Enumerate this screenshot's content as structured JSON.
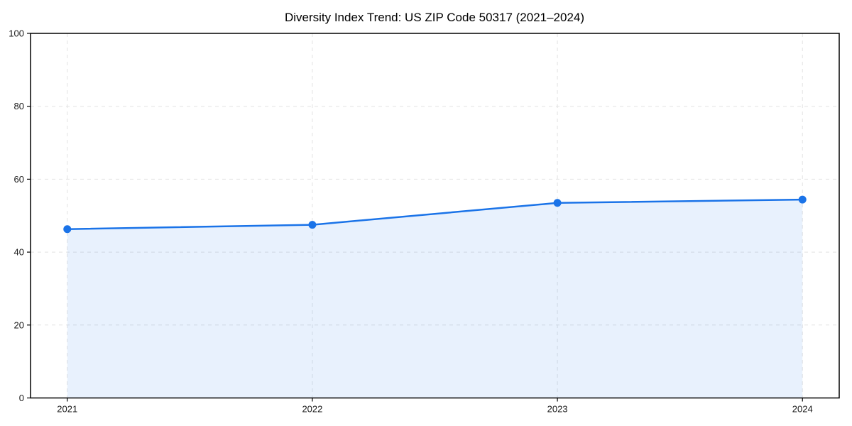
{
  "chart_data": {
    "type": "area",
    "title": "Diversity Index Trend: US ZIP Code 50317 (2021–2024)",
    "xlabel": "",
    "ylabel": "",
    "x": [
      2021,
      2022,
      2023,
      2024
    ],
    "categories": [
      "2021",
      "2022",
      "2023",
      "2024"
    ],
    "series": [
      {
        "name": "Diversity Index",
        "values": [
          46.3,
          47.5,
          53.5,
          54.4
        ]
      }
    ],
    "xlim": [
      2020.85,
      2024.15
    ],
    "ylim": [
      0,
      100
    ],
    "yticks": [
      0,
      20,
      40,
      60,
      80,
      100
    ],
    "grid": true,
    "grid_style": "dashed",
    "legend_position": "none",
    "colors": {
      "line": "#1a73e8",
      "marker": "#1a73e8",
      "fill": "#1a73e8",
      "fill_opacity": "0.10",
      "grid": "#e2e2e2",
      "spine": "#000000",
      "tick_text": "#1a1a1a",
      "background": "#ffffff"
    }
  }
}
